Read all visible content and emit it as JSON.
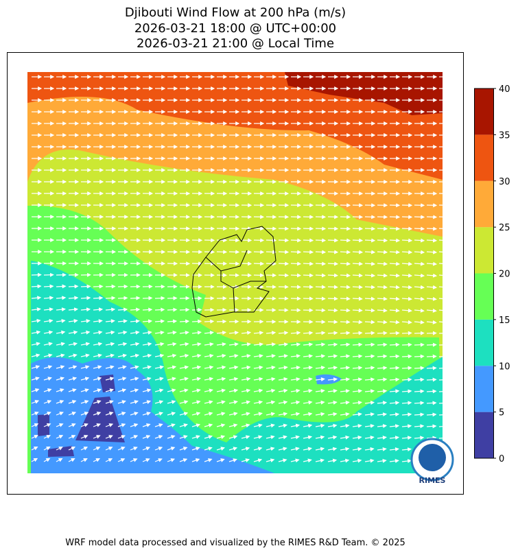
{
  "title": [
    "Djibouti Wind Flow at 200 hPa (m/s)",
    "2026-03-21 18:00 @ UTC+00:00",
    "2026-03-21 21:00 @ Local Time"
  ],
  "colorbar": {
    "lim": [
      0,
      40
    ],
    "ticks": [
      0,
      5,
      10,
      15,
      20,
      25,
      30,
      35,
      40
    ],
    "colors": [
      "#3f3fa3",
      "#4499ff",
      "#1de0c0",
      "#66ff55",
      "#cce833",
      "#ffaa38",
      "#ee5511",
      "#a81500"
    ]
  },
  "logo": "RIMES",
  "footer": "WRF model data processed and visualized by the RIMES R&D Team. © 2025"
}
